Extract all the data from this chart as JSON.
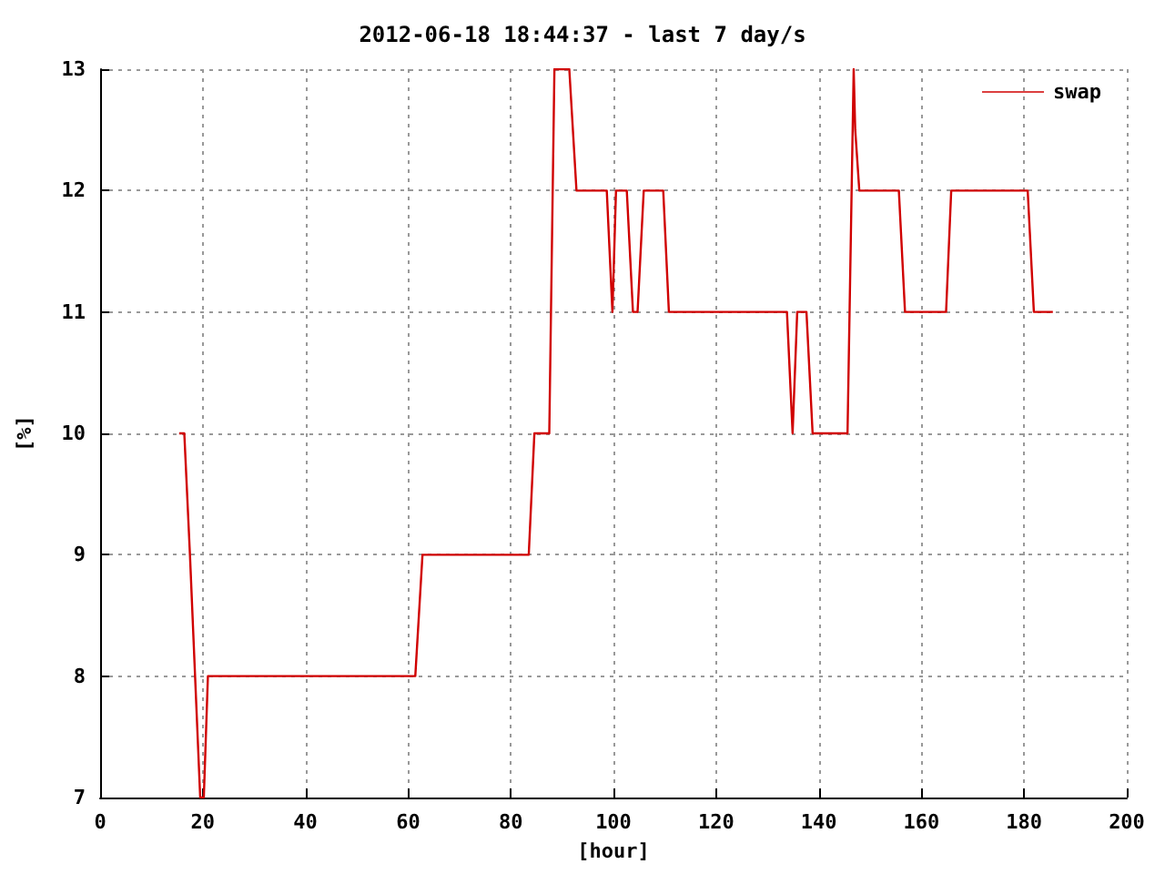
{
  "chart_data": {
    "type": "line",
    "title": "2012-06-18 18:44:37 - last 7 day/s",
    "xlabel": "[hour]",
    "ylabel": "[%]",
    "xlim": [
      0,
      200
    ],
    "xticks": [
      0,
      20,
      40,
      60,
      80,
      100,
      120,
      140,
      160,
      180,
      200
    ],
    "ylim": [
      7,
      13
    ],
    "yticks": [
      7,
      8,
      9,
      10,
      11,
      12,
      13
    ],
    "grid": true,
    "legend": "top right",
    "marker": "none",
    "series": [
      {
        "name": "swap",
        "color": "#d00000",
        "x": [
          15.4,
          16.4,
          17.5,
          18.5,
          19.5,
          20.2,
          21,
          61.4,
          62.8,
          83.5,
          84.6,
          87.5,
          88.5,
          91.4,
          92.8,
          98.7,
          99.8,
          100.5,
          102.6,
          103.8,
          104.7,
          105.9,
          109.7,
          110.8,
          133.8,
          134.9,
          135.8,
          137.6,
          138.8,
          145.6,
          146.8,
          147.1,
          147.9,
          155.6,
          156.8,
          164.8,
          165.8,
          180.7,
          181.9,
          185.6
        ],
        "values": [
          10,
          10,
          9,
          8,
          7,
          7,
          8,
          8,
          9,
          9,
          10,
          10,
          13,
          13,
          12,
          12,
          11,
          12,
          12,
          11,
          11,
          12,
          12,
          11,
          11,
          10,
          11,
          11,
          10,
          10,
          13,
          12.5,
          12,
          12,
          11,
          11,
          12,
          12,
          11,
          11
        ]
      }
    ]
  }
}
